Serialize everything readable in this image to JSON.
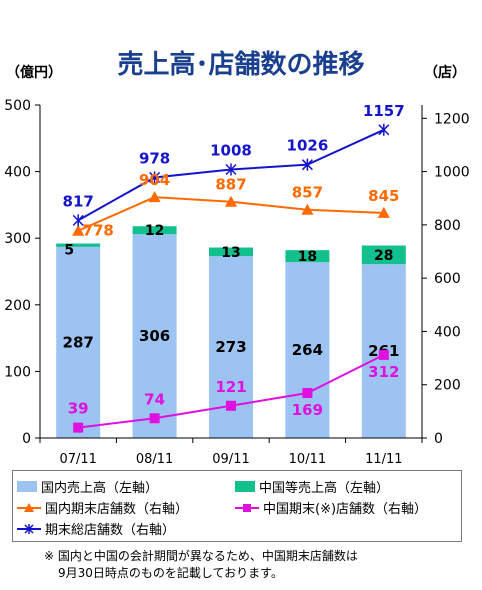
{
  "title": "売上高･店舗数の推移",
  "left_unit": "（億円）",
  "right_unit": "（店）",
  "note_lines": [
    "※ 国内と中国の会計期間が異なるため、中国期末店舗数は",
    "9月30日時点のものを記載しております。"
  ],
  "colors": {
    "domestic_sales": "#9cc3f2",
    "china_sales": "#11c08c",
    "domestic_stores": "#ff6a00",
    "china_stores": "#e010e0",
    "total_stores": "#1414cc"
  },
  "chart_data": {
    "type": "bar",
    "categories": [
      "07/11",
      "08/11",
      "09/11",
      "10/11",
      "11/11"
    ],
    "bar_stack": [
      {
        "name": "国内売上高（左軸）",
        "axis": "left",
        "values": [
          287,
          306,
          273,
          264,
          261
        ]
      },
      {
        "name": "中国等売上高（左軸）",
        "axis": "left",
        "values": [
          5,
          12,
          13,
          18,
          28
        ]
      }
    ],
    "lines": [
      {
        "name": "国内期末店舗数（右軸）",
        "axis": "right",
        "marker": "triangle",
        "values": [
          778,
          904,
          887,
          857,
          845
        ]
      },
      {
        "name": "中国期末(※)店舗数（右軸）",
        "axis": "right",
        "marker": "square",
        "values": [
          39,
          74,
          121,
          169,
          312
        ]
      },
      {
        "name": "期末総店舗数（右軸）",
        "axis": "right",
        "marker": "x",
        "values": [
          817,
          978,
          1008,
          1026,
          1157
        ]
      }
    ],
    "left_axis": {
      "range": [
        0,
        500
      ],
      "ticks": [
        "0",
        "100",
        "200",
        "300",
        "400",
        "500"
      ]
    },
    "right_axis": {
      "range": [
        0,
        1250
      ],
      "ticks": [
        "0",
        "200",
        "400",
        "600",
        "800",
        "1000",
        "1200"
      ]
    },
    "grid": false,
    "legend_position": "bottom"
  }
}
